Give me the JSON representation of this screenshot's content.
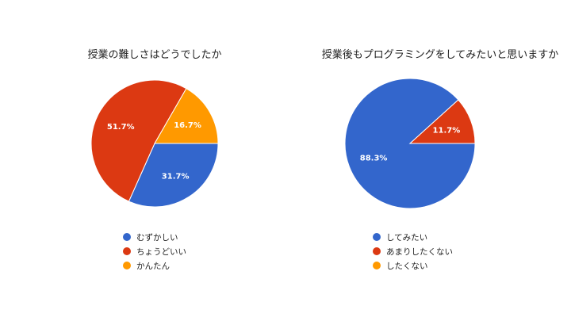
{
  "chart_data": [
    {
      "type": "pie",
      "title": "授業の難しさはどうでしたか",
      "categories": [
        "むずかしい",
        "ちょうどいい",
        "かんたん"
      ],
      "values": [
        31.7,
        51.7,
        16.7
      ],
      "colors": [
        "#3366cc",
        "#dc3912",
        "#ff9900"
      ],
      "value_labels": [
        "31.7%",
        "51.7%",
        "16.7%"
      ],
      "legend_position": "bottom"
    },
    {
      "type": "pie",
      "title": "授業後もプログラミングをしてみたいと思いますか",
      "categories": [
        "してみたい",
        "あまりしたくない",
        "したくない"
      ],
      "values": [
        88.3,
        11.7,
        0
      ],
      "colors": [
        "#3366cc",
        "#dc3912",
        "#ff9900"
      ],
      "value_labels": [
        "88.3%",
        "11.7%",
        ""
      ],
      "legend_position": "bottom"
    }
  ]
}
